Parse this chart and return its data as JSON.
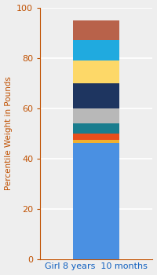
{
  "category": "Girl 8 years  10 months",
  "segments": [
    {
      "label": "base_blue",
      "value": 46,
      "color": "#4a90e2"
    },
    {
      "label": "gold_thin",
      "value": 1.5,
      "color": "#f0b030"
    },
    {
      "label": "orange_red",
      "value": 2.5,
      "color": "#e84e1b"
    },
    {
      "label": "teal",
      "value": 4,
      "color": "#1a7d8e"
    },
    {
      "label": "gray",
      "value": 6,
      "color": "#b8b8b8"
    },
    {
      "label": "dark_navy",
      "value": 10,
      "color": "#1e3560"
    },
    {
      "label": "yellow",
      "value": 9,
      "color": "#fdd868"
    },
    {
      "label": "cyan_blue",
      "value": 8,
      "color": "#20aadf"
    },
    {
      "label": "brown",
      "value": 8,
      "color": "#b8624a"
    }
  ],
  "ylabel": "Percentile Weight in Pounds",
  "ylim": [
    0,
    100
  ],
  "yticks": [
    0,
    20,
    40,
    60,
    80,
    100
  ],
  "background_color": "#eeeeee",
  "bar_width": 0.45,
  "xlim": [
    -0.55,
    0.55
  ],
  "ylabel_fontsize": 7.5,
  "tick_fontsize": 8,
  "xlabel_fontsize": 8,
  "ylabel_color": "#c05000",
  "xlabel_color": "#1060c0",
  "tick_color": "#c05000",
  "grid_color": "#ffffff",
  "axis_color": "#c05000"
}
